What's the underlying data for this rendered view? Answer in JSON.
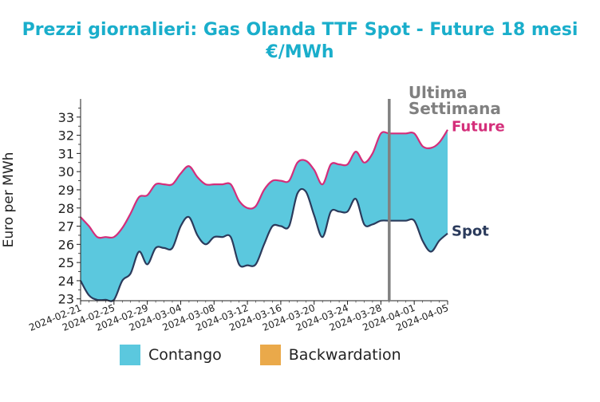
{
  "chart_data": {
    "type": "area",
    "title_line1": "Prezzi giornalieri: Gas Olanda TTF Spot - Future 18 mesi",
    "title_line2": "€/MWh",
    "ylabel": "Euro per MWh",
    "ylim": [
      22.9,
      34.0
    ],
    "yticks": [
      23,
      24,
      25,
      26,
      27,
      28,
      29,
      30,
      31,
      32,
      33
    ],
    "xticks": [
      "2024-02-21",
      "2024-02-25",
      "2024-02-29",
      "2024-03-04",
      "2024-03-08",
      "2024-03-12",
      "2024-03-16",
      "2024-03-20",
      "2024-03-24",
      "2024-03-28",
      "2024-04-01",
      "2024-04-05"
    ],
    "x": [
      "2024-02-21",
      "2024-02-22",
      "2024-02-23",
      "2024-02-24",
      "2024-02-25",
      "2024-02-26",
      "2024-02-27",
      "2024-02-28",
      "2024-02-29",
      "2024-03-01",
      "2024-03-02",
      "2024-03-03",
      "2024-03-04",
      "2024-03-05",
      "2024-03-06",
      "2024-03-07",
      "2024-03-08",
      "2024-03-09",
      "2024-03-10",
      "2024-03-11",
      "2024-03-12",
      "2024-03-13",
      "2024-03-14",
      "2024-03-15",
      "2024-03-16",
      "2024-03-17",
      "2024-03-18",
      "2024-03-19",
      "2024-03-20",
      "2024-03-21",
      "2024-03-22",
      "2024-03-23",
      "2024-03-24",
      "2024-03-25",
      "2024-03-26",
      "2024-03-27",
      "2024-03-28",
      "2024-03-29",
      "2024-03-30",
      "2024-03-31",
      "2024-04-01",
      "2024-04-02",
      "2024-04-03",
      "2024-04-04",
      "2024-04-05"
    ],
    "series": [
      {
        "name": "Future",
        "color": "#d42e7a",
        "values": [
          27.5,
          27.0,
          26.4,
          26.4,
          26.4,
          26.9,
          27.7,
          28.6,
          28.7,
          29.3,
          29.3,
          29.3,
          29.9,
          30.3,
          29.7,
          29.3,
          29.3,
          29.3,
          29.3,
          28.4,
          28.0,
          28.1,
          29.0,
          29.5,
          29.5,
          29.5,
          30.5,
          30.6,
          30.1,
          29.3,
          30.4,
          30.4,
          30.4,
          31.1,
          30.5,
          31.0,
          32.1,
          32.1,
          32.1,
          32.1,
          32.1,
          31.4,
          31.3,
          31.6,
          32.3
        ]
      },
      {
        "name": "Spot",
        "color": "#2b3b5c",
        "values": [
          24.0,
          23.2,
          22.95,
          22.95,
          22.95,
          24.0,
          24.4,
          25.6,
          24.9,
          25.8,
          25.8,
          25.8,
          27.0,
          27.5,
          26.5,
          26.0,
          26.4,
          26.4,
          26.4,
          24.9,
          24.85,
          24.9,
          26.0,
          27.0,
          27.0,
          27.0,
          28.8,
          28.9,
          27.6,
          26.4,
          27.8,
          27.8,
          27.8,
          28.5,
          27.1,
          27.1,
          27.3,
          27.3,
          27.3,
          27.3,
          27.3,
          26.2,
          25.6,
          26.2,
          26.6
        ]
      }
    ],
    "vline": {
      "x": "2024-03-29",
      "label_line1": "Ultima",
      "label_line2": "Settimana",
      "color": "#808080"
    },
    "fill_colors": {
      "contango": "#5bc8de",
      "backwardation": "#eaa94a"
    },
    "legend": [
      {
        "label": "Contango",
        "color": "#5bc8de"
      },
      {
        "label": "Backwardation",
        "color": "#eaa94a"
      }
    ],
    "legend_placement": "bottom",
    "grid": false
  }
}
